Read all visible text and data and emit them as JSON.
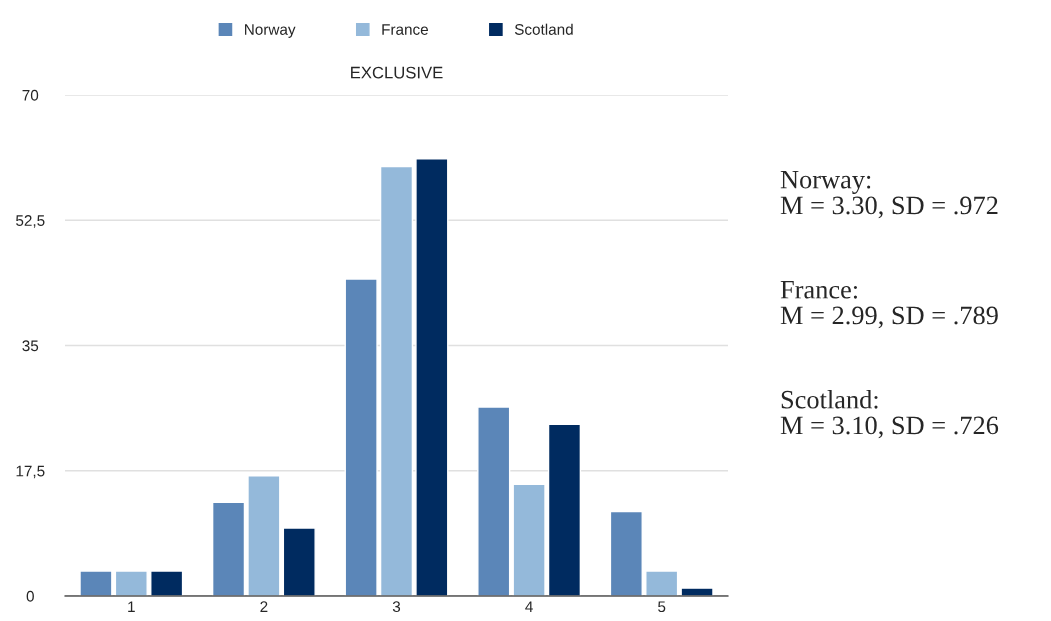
{
  "chart_data": {
    "type": "bar",
    "title": "EXCLUSIVE",
    "categories": [
      "1",
      "2",
      "3",
      "4",
      "5"
    ],
    "series": [
      {
        "name": "Norway",
        "color": "#5b86b8",
        "values": [
          3.5,
          13.1,
          44.3,
          26.4,
          11.8
        ]
      },
      {
        "name": "France",
        "color": "#94b9da",
        "values": [
          3.5,
          16.8,
          60.0,
          15.6,
          3.5
        ]
      },
      {
        "name": "Scotland",
        "color": "#002b60",
        "values": [
          3.5,
          9.5,
          61.1,
          24.0,
          1.1
        ]
      }
    ],
    "ylim": [
      0,
      70
    ],
    "yticks": [
      0,
      {
        "value": 17.5,
        "label": "17,5"
      },
      35,
      {
        "value": 52.5,
        "label": "52,5"
      },
      70
    ],
    "grid": "y",
    "legend": "top",
    "annotations": [
      "Norway:\nM = 3.30, SD = .972",
      "France:\nM = 2.99, SD = .789",
      "Scotland:\nM = 3.10, SD = .726"
    ]
  }
}
